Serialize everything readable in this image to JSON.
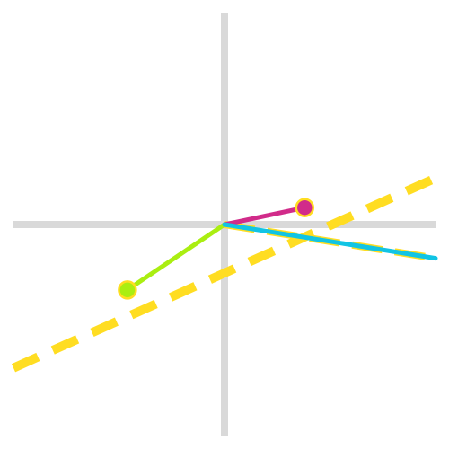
{
  "colors": {
    "background": "#ffffff",
    "axis": "#d9d9d9",
    "dashed_guide": "#ffdd22",
    "vector_magenta": "#d12b8a",
    "vector_lime": "#aaee11",
    "vector_cyan": "#11c4e4",
    "point_outline": "#ffdd22"
  },
  "diagram": {
    "axes": {
      "horizontal": true,
      "vertical": true
    },
    "dashed_lines": [
      {
        "name": "upper-dashed-guide",
        "from": [
          -1.0,
          -0.68
        ],
        "to": [
          1.0,
          0.22
        ]
      },
      {
        "name": "lower-dashed-guide",
        "from": [
          0.0,
          0.0
        ],
        "to": [
          1.0,
          -0.16
        ]
      }
    ],
    "vectors": [
      {
        "name": "magenta-vector",
        "from": [
          0.0,
          0.0
        ],
        "to": [
          0.38,
          0.08
        ],
        "color_key": "vector_magenta",
        "endpoint": true
      },
      {
        "name": "lime-vector",
        "from": [
          0.0,
          0.0
        ],
        "to": [
          -0.46,
          -0.31
        ],
        "color_key": "vector_lime",
        "endpoint": true
      },
      {
        "name": "cyan-vector",
        "from": [
          0.0,
          0.0
        ],
        "to": [
          1.0,
          -0.16
        ],
        "color_key": "vector_cyan",
        "endpoint": false
      }
    ]
  }
}
